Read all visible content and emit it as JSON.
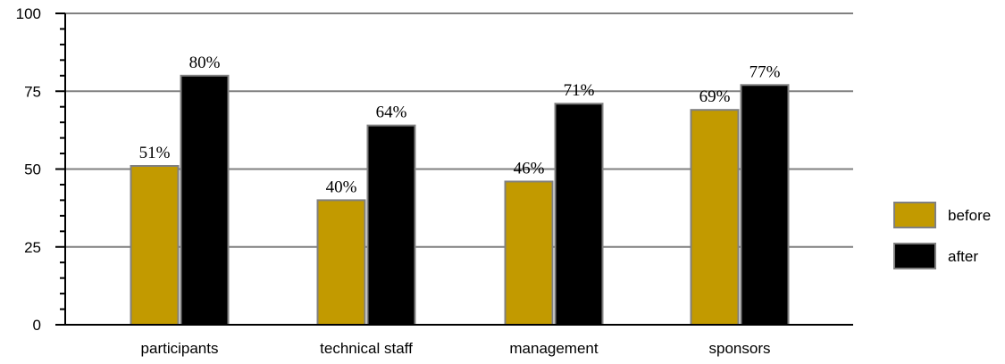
{
  "chart_data": {
    "type": "bar",
    "categories": [
      "participants",
      "technical staff",
      "management",
      "sponsors"
    ],
    "series": [
      {
        "name": "before",
        "values": [
          51,
          40,
          46,
          69
        ],
        "labels": [
          "51%",
          "40%",
          "46%",
          "69%"
        ],
        "color": "#c29a00"
      },
      {
        "name": "after",
        "values": [
          80,
          64,
          71,
          77
        ],
        "labels": [
          "80%",
          "64%",
          "71%",
          "77%"
        ],
        "color": "#000000"
      }
    ],
    "ylim": [
      0,
      100
    ],
    "yticks": [
      0,
      25,
      50,
      75,
      100
    ],
    "ytick_labels": [
      "0",
      "25",
      "50",
      "75",
      "100"
    ],
    "minor_tick_step": 5,
    "gridlines": true,
    "gridline_color": "#808080",
    "bar_border_color": "#808080",
    "legend_position": "right",
    "title": "",
    "xlabel": "",
    "ylabel": ""
  }
}
